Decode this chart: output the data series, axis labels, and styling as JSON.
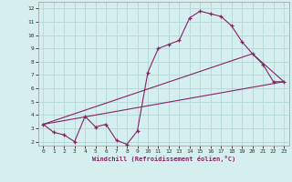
{
  "xlabel": "Windchill (Refroidissement éolien,°C)",
  "bg_color": "#d4efee",
  "grid_color": "#b8dbd9",
  "line_color": "#882266",
  "xlim": [
    -0.5,
    23.5
  ],
  "ylim": [
    1.7,
    12.5
  ],
  "xticks": [
    0,
    1,
    2,
    3,
    4,
    5,
    6,
    7,
    8,
    9,
    10,
    11,
    12,
    13,
    14,
    15,
    16,
    17,
    18,
    19,
    20,
    21,
    22,
    23
  ],
  "yticks": [
    2,
    3,
    4,
    5,
    6,
    7,
    8,
    9,
    10,
    11,
    12
  ],
  "curve1_x": [
    0,
    1,
    2,
    3,
    4,
    5,
    6,
    7,
    8,
    9,
    10,
    11,
    12,
    13,
    14,
    15,
    16,
    17,
    18,
    19,
    20,
    21,
    22,
    23
  ],
  "curve1_y": [
    3.3,
    2.7,
    2.5,
    2.0,
    3.9,
    3.1,
    3.3,
    2.1,
    1.8,
    2.8,
    7.2,
    9.0,
    9.3,
    9.6,
    11.3,
    11.8,
    11.6,
    11.4,
    10.7,
    9.5,
    8.6,
    7.8,
    6.5,
    6.5
  ],
  "curve2_x": [
    0,
    23
  ],
  "curve2_y": [
    3.3,
    6.5
  ],
  "curve3_x": [
    0,
    20,
    23
  ],
  "curve3_y": [
    3.3,
    8.6,
    6.5
  ]
}
